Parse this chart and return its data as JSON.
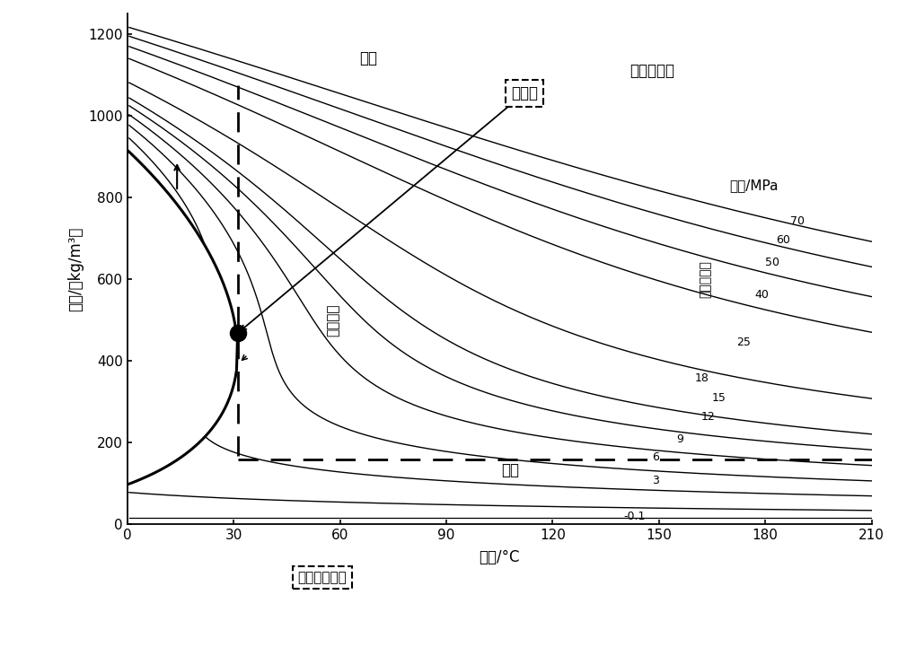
{
  "xlabel": "温度/°C",
  "ylabel": "密度/（kg/m³）",
  "xlim": [
    0,
    210
  ],
  "ylim": [
    0,
    1250
  ],
  "xticks": [
    0,
    30,
    60,
    90,
    120,
    150,
    180,
    210
  ],
  "yticks": [
    0,
    200,
    400,
    600,
    800,
    1000,
    1200
  ],
  "pressures": [
    70,
    60,
    50,
    40,
    25,
    18,
    15,
    12,
    9,
    6,
    3,
    -0.1
  ],
  "pressure_labels": [
    "70",
    "60",
    "50",
    "40",
    "25",
    "18",
    "15",
    "12",
    "9",
    "6",
    "3",
    "-0.1"
  ],
  "critical_temp_C": 31.1,
  "critical_density": 467.6,
  "critical_pressure_MPa": 7.38,
  "label_liquid": "液态",
  "label_gas": "气态",
  "label_twophase": "两相区域",
  "label_supercritical": "超临界区域",
  "label_critical_point": "临界点",
  "label_vapor_line": "水汽分界线",
  "label_boundary": "超临界分界线",
  "label_pressure": "压力/MPa",
  "bg_color": "#ffffff"
}
